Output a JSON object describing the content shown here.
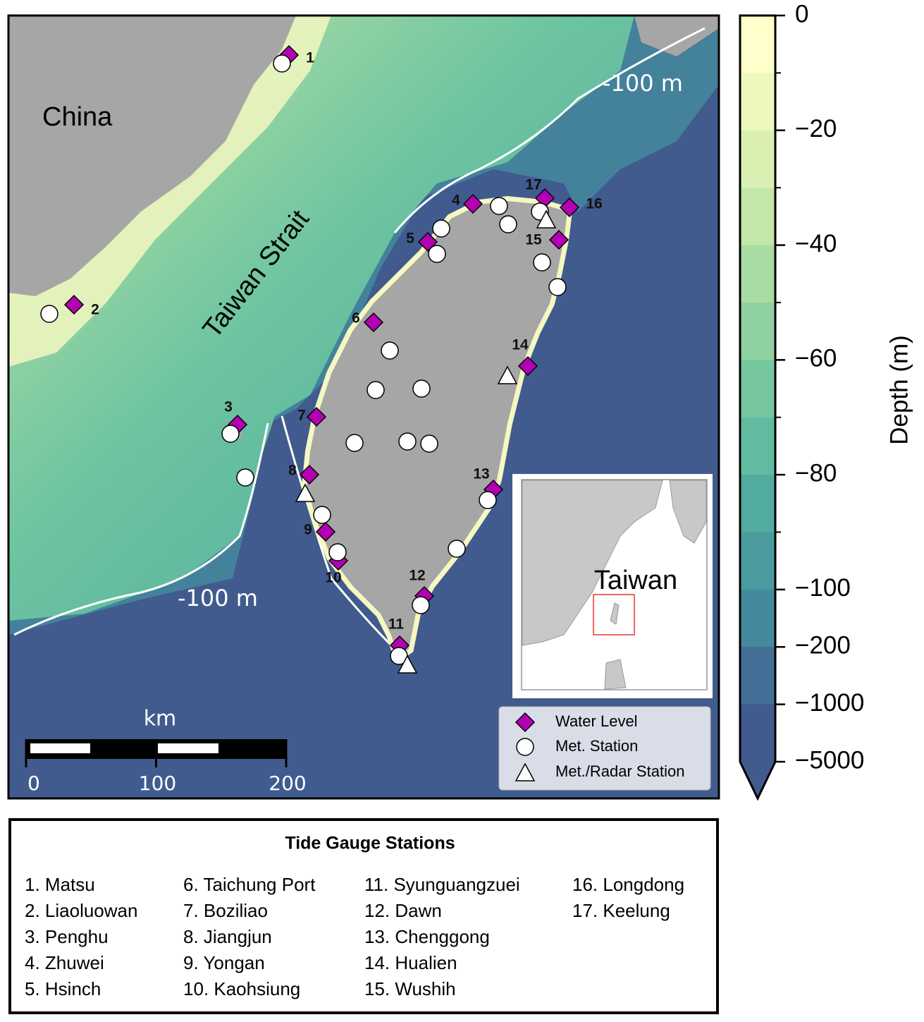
{
  "map": {
    "labels": {
      "china": "China",
      "strait": "Taiwan Strait",
      "contour_north": "-100 m",
      "contour_south": "-100 m"
    },
    "stations": [
      "1",
      "2",
      "3",
      "4",
      "5",
      "6",
      "7",
      "8",
      "9",
      "10",
      "11",
      "12",
      "13",
      "14",
      "15",
      "16",
      "17"
    ],
    "scale_bar": {
      "unit": "km",
      "ticks": [
        0,
        100,
        200
      ]
    },
    "legend": [
      "Water Level",
      "Met. Station",
      "Met./Radar Station"
    ],
    "inset": {
      "label": "Taiwan"
    }
  },
  "colorbar": {
    "label": "Depth (m)",
    "ticks": [
      0,
      {
        "value": -20,
        "label": "−20"
      },
      {
        "value": -40,
        "label": "−40"
      },
      {
        "value": -60,
        "label": "−60"
      },
      {
        "value": -80,
        "label": "−80"
      },
      {
        "value": -100,
        "label": "−100"
      },
      {
        "value": -200,
        "label": "−200"
      },
      {
        "value": -1000,
        "label": "−1000"
      },
      {
        "value": -5000,
        "label": "−5000"
      }
    ]
  },
  "station_list": {
    "title": "Tide Gauge Stations",
    "columns": [
      [
        "1. Matsu",
        "2. Liaoluowan",
        "3. Penghu",
        "4. Zhuwei",
        "5. Hsinch"
      ],
      [
        "6. Taichung Port",
        "7. Boziliao",
        "8. Jiangjun",
        "9. Yongan",
        "10. Kaohsiung"
      ],
      [
        "11. Syunguangzuei",
        "12. Dawn",
        "13. Chenggong",
        "14. Hualien",
        "15. Wushih"
      ],
      [
        "16. Longdong",
        "17. Keelung"
      ]
    ]
  }
}
